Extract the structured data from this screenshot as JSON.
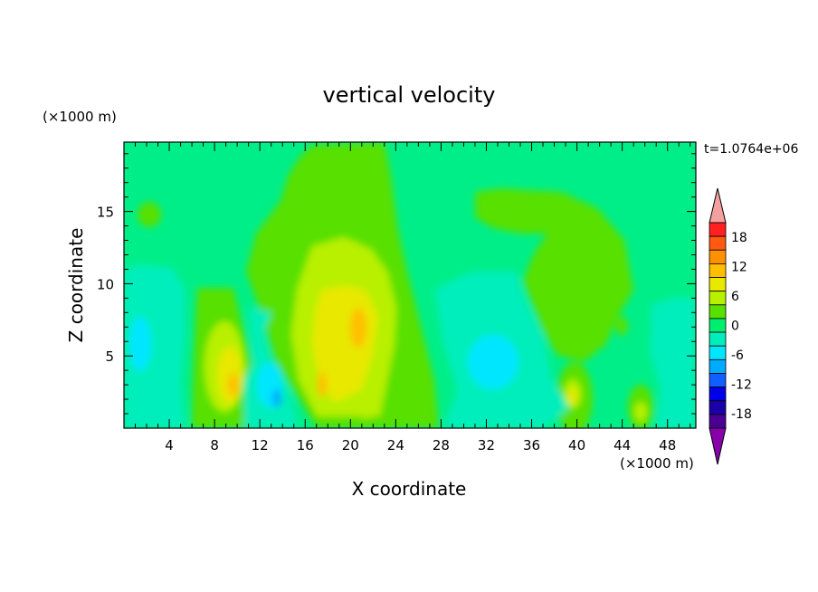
{
  "chart_data": {
    "type": "heatmap",
    "title": "vertical velocity",
    "xlabel": "X coordinate",
    "ylabel": "Z coordinate",
    "x_unit": "(×1000 m)",
    "y_unit": "(×1000 m)",
    "time_label": "t=1.0764e+06",
    "xlim": [
      0,
      50.5
    ],
    "ylim": [
      0,
      19.8
    ],
    "x_ticks": [
      "4",
      "8",
      "12",
      "16",
      "20",
      "24",
      "28",
      "32",
      "36",
      "40",
      "44",
      "48"
    ],
    "y_ticks": [
      "5",
      "10",
      "15"
    ],
    "x_tick_values": [
      4,
      8,
      12,
      16,
      20,
      24,
      28,
      32,
      36,
      40,
      44,
      48
    ],
    "y_tick_values": [
      5,
      10,
      15
    ],
    "colorbar": {
      "labels": [
        "18",
        "12",
        "6",
        "0",
        "-6",
        "-12",
        "-18"
      ],
      "label_values": [
        18,
        12,
        6,
        0,
        -6,
        -12,
        -18
      ],
      "levels": [
        21,
        18,
        15,
        12,
        9,
        6,
        3,
        0,
        -3,
        -6,
        -9,
        -12,
        -15,
        -18,
        -21
      ],
      "colors": [
        "#ff2020",
        "#ff5a10",
        "#ff9000",
        "#ffbf00",
        "#e8e800",
        "#b8f000",
        "#58e000",
        "#00ee70",
        "#00eebb",
        "#00e6ff",
        "#00aaff",
        "#1060ff",
        "#0000e8",
        "#1a00a8",
        "#4a0090"
      ],
      "over_color": "#f4a0a0",
      "under_color": "#8800aa"
    },
    "background_level_color": "#00ee88",
    "features": [
      {
        "type": "updraft",
        "x": 19.5,
        "z": 7.0,
        "peak": 9
      },
      {
        "type": "updraft",
        "x": 17.0,
        "z": 3.0,
        "peak": 6
      },
      {
        "type": "updraft",
        "x": 9.8,
        "z": 3.0,
        "peak": 7
      },
      {
        "type": "updraft",
        "x": 39.5,
        "z": 2.0,
        "peak": 5
      },
      {
        "type": "updraft",
        "x": 45.5,
        "z": 1.5,
        "peak": 4
      },
      {
        "type": "updraft",
        "x": 21.0,
        "z": 2.0,
        "peak": 4
      },
      {
        "type": "downdraft",
        "x": 13.5,
        "z": 2.0,
        "peak": -7
      },
      {
        "type": "downdraft",
        "x": 31.0,
        "z": 5.0,
        "peak": -4
      },
      {
        "type": "downdraft",
        "x": 1.5,
        "z": 6.0,
        "peak": -3
      },
      {
        "type": "downdraft",
        "x": 48.0,
        "z": 4.0,
        "peak": -2
      }
    ]
  }
}
